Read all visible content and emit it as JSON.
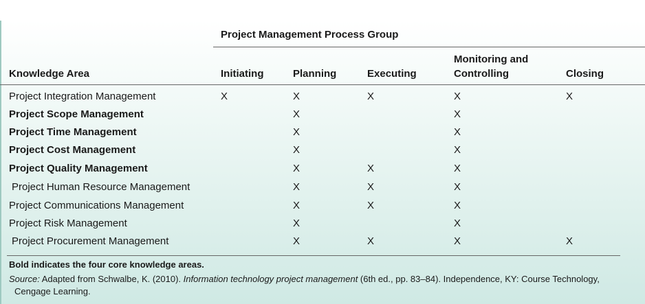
{
  "table": {
    "group_title": "Project Management Process Group",
    "headers": {
      "knowledge_area": "Knowledge Area",
      "initiating": "Initiating",
      "planning": "Planning",
      "executing": "Executing",
      "monitoring_line1": "Monitoring and",
      "monitoring_line2": "Controlling",
      "closing": "Closing"
    },
    "rows": [
      {
        "name": "Project Integration Management",
        "bold": false,
        "initiating": "X",
        "planning": "X",
        "executing": "X",
        "monitoring": "X",
        "closing": "X"
      },
      {
        "name": "Project Scope Management",
        "bold": true,
        "initiating": "",
        "planning": "X",
        "executing": "",
        "monitoring": "X",
        "closing": ""
      },
      {
        "name": "Project Time Management",
        "bold": true,
        "initiating": "",
        "planning": "X",
        "executing": "",
        "monitoring": "X",
        "closing": ""
      },
      {
        "name": "Project Cost Management",
        "bold": true,
        "initiating": "",
        "planning": "X",
        "executing": "",
        "monitoring": "X",
        "closing": ""
      },
      {
        "name": "Project Quality Management",
        "bold": true,
        "initiating": "",
        "planning": "X",
        "executing": "X",
        "monitoring": "X",
        "closing": ""
      },
      {
        "name": "Project Human Resource Management",
        "bold": false,
        "initiating": "",
        "planning": "X",
        "executing": "X",
        "monitoring": "X",
        "closing": ""
      },
      {
        "name": "Project Communications Management",
        "bold": false,
        "initiating": "",
        "planning": "X",
        "executing": "X",
        "monitoring": "X",
        "closing": ""
      },
      {
        "name": "Project Risk Management",
        "bold": false,
        "initiating": "",
        "planning": "X",
        "executing": "",
        "monitoring": "X",
        "closing": ""
      },
      {
        "name": "Project Procurement Management",
        "bold": false,
        "initiating": "",
        "planning": "X",
        "executing": "X",
        "monitoring": "X",
        "closing": "X"
      }
    ]
  },
  "footnote": {
    "bold_note": "Bold indicates the four core knowledge areas.",
    "source_label": "Source:",
    "source_text_1": " Adapted from Schwalbe, K. (2010). ",
    "source_title": "Information technology project management",
    "source_text_2": " (6th ed., pp. 83–84). Independence, KY: Course Technology,",
    "source_text_3": "Cengage Learning."
  }
}
